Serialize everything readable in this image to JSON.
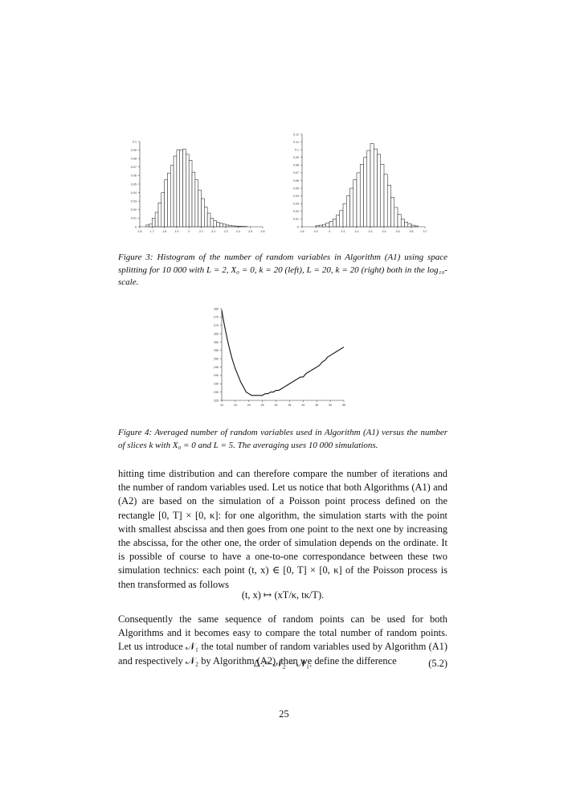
{
  "chart_data": [
    {
      "type": "bar",
      "title": "",
      "x": [
        1.65,
        1.675,
        1.7,
        1.725,
        1.75,
        1.775,
        1.8,
        1.825,
        1.85,
        1.875,
        1.9,
        1.925,
        1.95,
        1.975,
        2.0,
        2.025,
        2.05,
        2.075,
        2.1,
        2.125,
        2.15,
        2.175,
        2.2,
        2.225,
        2.25,
        2.275,
        2.3,
        2.325,
        2.35,
        2.375,
        2.4,
        2.425,
        2.45
      ],
      "values": [
        0.002,
        0.003,
        0.01,
        0.017,
        0.028,
        0.04,
        0.055,
        0.063,
        0.072,
        0.083,
        0.09,
        0.09,
        0.091,
        0.085,
        0.078,
        0.064,
        0.055,
        0.043,
        0.033,
        0.023,
        0.016,
        0.01,
        0.007,
        0.005,
        0.004,
        0.003,
        0.002,
        0.0015,
        0.001,
        0.0008,
        0.0006,
        0.0004,
        0.0003
      ],
      "xlim": [
        1.6,
        2.6
      ],
      "ylim": [
        0,
        0.1
      ],
      "xticks": [
        "1.6",
        "1.7",
        "1.8",
        "1.9",
        "2",
        "2.1",
        "2.2",
        "2.3",
        "2.4",
        "2.5",
        "2.6"
      ],
      "yticks": [
        "0",
        "0.01",
        "0.02",
        "0.03",
        "0.04",
        "0.05",
        "0.06",
        "0.07",
        "0.08",
        "0.09",
        "0.1"
      ]
    },
    {
      "type": "bar",
      "title": "",
      "x": [
        2.9,
        2.925,
        2.95,
        2.975,
        3.0,
        3.025,
        3.05,
        3.075,
        3.1,
        3.125,
        3.15,
        3.175,
        3.2,
        3.225,
        3.25,
        3.275,
        3.3,
        3.325,
        3.35,
        3.375,
        3.4,
        3.425,
        3.45,
        3.475,
        3.5,
        3.525,
        3.55,
        3.575,
        3.6,
        3.625
      ],
      "values": [
        0.0015,
        0.002,
        0.003,
        0.005,
        0.007,
        0.01,
        0.015,
        0.021,
        0.03,
        0.04,
        0.05,
        0.061,
        0.07,
        0.081,
        0.09,
        0.099,
        0.108,
        0.101,
        0.094,
        0.081,
        0.068,
        0.054,
        0.038,
        0.025,
        0.016,
        0.01,
        0.006,
        0.004,
        0.002,
        0.001
      ],
      "xlim": [
        2.8,
        3.7
      ],
      "ylim": [
        0,
        0.12
      ],
      "xticks": [
        "2.8",
        "2.9",
        "3",
        "3.1",
        "3.2",
        "3.3",
        "3.4",
        "3.5",
        "3.6",
        "3.7"
      ],
      "yticks": [
        "0",
        "0.01",
        "0.02",
        "0.03",
        "0.04",
        "0.05",
        "0.06",
        "0.07",
        "0.08",
        "0.09",
        "0.1",
        "0.11",
        "0.12"
      ]
    },
    {
      "type": "line",
      "title": "",
      "x": [
        10,
        11,
        12,
        13,
        14,
        15,
        16,
        17,
        18,
        19,
        20,
        21,
        22,
        23,
        24,
        25,
        26,
        27,
        28,
        29,
        30,
        31,
        32,
        33,
        34,
        35,
        36,
        37,
        38,
        39,
        40,
        41,
        42,
        43,
        44,
        45,
        46,
        47,
        48,
        49,
        50,
        51,
        52,
        53,
        54,
        55
      ],
      "values": [
        279,
        270,
        262,
        255,
        249,
        244,
        240,
        236,
        233,
        230,
        229,
        228,
        228,
        228,
        228,
        228,
        229,
        229,
        230,
        230,
        231,
        231,
        232,
        233,
        234,
        235,
        236,
        237,
        238,
        239,
        239,
        241,
        242,
        243,
        244,
        245,
        246,
        248,
        249,
        251,
        252,
        253,
        254,
        255,
        256,
        257
      ],
      "xlim": [
        10,
        55
      ],
      "ylim": [
        225,
        280
      ],
      "xticks": [
        "10",
        "15",
        "20",
        "25",
        "30",
        "35",
        "40",
        "45",
        "50",
        "55"
      ],
      "yticks": [
        "225",
        "230",
        "235",
        "240",
        "245",
        "250",
        "255",
        "260",
        "265",
        "270",
        "275",
        "280"
      ]
    }
  ],
  "captions": {
    "fig3_label": "Figure 3:",
    "fig3_text": " Histogram of the number of random variables in Algorithm (A1) using space splitting for 10 000 with L = 2, X₀ = 0, k = 20 (left), L = 20, k = 20 (right) both in the log₁₀-scale.",
    "fig4_label": "Figure 4:",
    "fig4_text": " Averaged number of random variables used in Algorithm (A1) versus the number of slices k with X₀ = 0 and L = 5. The averaging uses 10 000 simulations."
  },
  "body": {
    "para1": "hitting time distribution and can therefore compare the number of iterations and the number of random variables used. Let us notice that both Algorithms (A1) and (A2) are based on the simulation of a Poisson point process defined on the rectangle [0, T] × [0, κ]: for one algorithm, the simulation starts with the point with smallest abscissa and then goes from one point to the next one by increasing the abscissa, for the other one, the order of simulation depends on the ordinate. It is possible of course to have a one-to-one correspondance between these two simulation technics: each point (t, x) ∈ [0, T] × [0, κ] of the Poisson process is then transformed as follows",
    "eq1": "(t, x) ↦ (xT/κ, tκ/T).",
    "para2": "Consequently the same sequence of random points can be used for both Algorithms and it becomes easy to compare the total number of random points. Let us introduce 𝒩₁ the total number of random variables used by Algorithm (A1) and respectively 𝒩₂ by Algorithm (A2), then we define the difference",
    "eq2": "Δ := 𝒩₂ − 𝒩₁.",
    "eq2_number": "(5.2)"
  },
  "page_number": "25"
}
